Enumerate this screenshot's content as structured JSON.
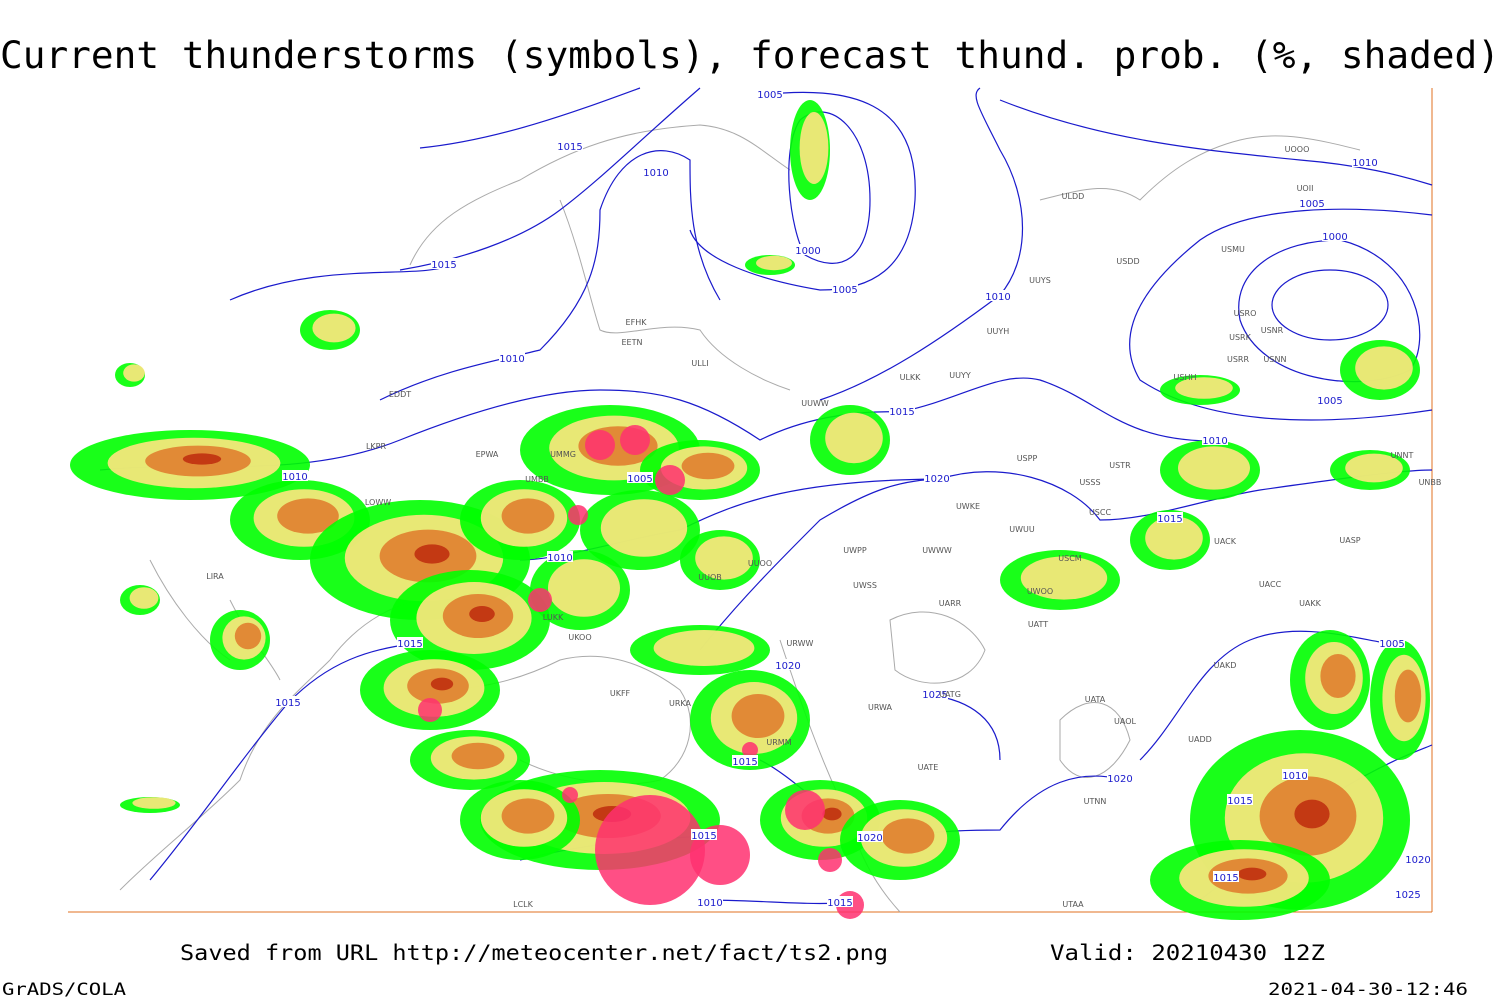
{
  "title": "Current thunderstorms (symbols), forecast thund. prob. (%, shaded)",
  "footer": {
    "source": "Saved from URL http://meteocenter.net/fact/ts2.png",
    "valid": "Valid: 20210430 12Z",
    "software": "GrADS/COLA",
    "timestamp": "2021-04-30-12:46"
  },
  "isobar_labels": [
    "1005",
    "1015",
    "1010",
    "1015",
    "1000",
    "1005",
    "1010",
    "1010",
    "1015",
    "1010",
    "1005",
    "1020",
    "1010",
    "1015",
    "1020",
    "1015",
    "1025",
    "1015",
    "1015",
    "1020",
    "1010",
    "1015",
    "1010",
    "1005",
    "1000",
    "1005",
    "1010",
    "1015",
    "1005",
    "1020",
    "1010",
    "1015",
    "1015",
    "1020",
    "1025"
  ],
  "stations": [
    "EFHK",
    "EETN",
    "ULLI",
    "ULDD",
    "UUYS",
    "UUYH",
    "ULKK",
    "UUYY",
    "UUWW",
    "EDDT",
    "EPWA",
    "LKPR",
    "LOWW",
    "UMMG",
    "UMBB",
    "LIRA",
    "LUKK",
    "UKOO",
    "UUOB",
    "UUOO",
    "UWPP",
    "UWWW",
    "UWSS",
    "URWA",
    "URWW",
    "URMM",
    "UATE",
    "UATG",
    "UARR",
    "UWOO",
    "UATT",
    "USSS",
    "USCC",
    "USTR",
    "USPP",
    "UWKE",
    "UWUU",
    "USCM",
    "UACK",
    "UACC",
    "UAKK",
    "UAKD",
    "UAOL",
    "UATA",
    "UADD",
    "UTAA",
    "UTNN",
    "USDD",
    "USMU",
    "USRO",
    "USNR",
    "USRK",
    "USNN",
    "USRR",
    "USHH",
    "UOOO",
    "UOII",
    "UNNT",
    "UNBB",
    "UASP",
    "URKA",
    "UKFF",
    "LCLK"
  ]
}
